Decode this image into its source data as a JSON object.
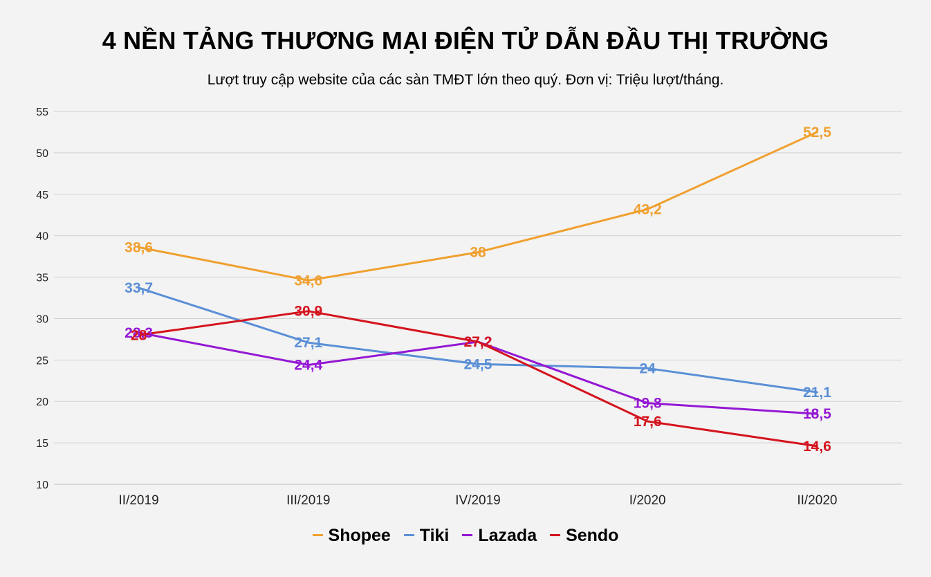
{
  "chart_data": {
    "type": "line",
    "title": "4 NỀN TẢNG THƯƠNG MẠI ĐIỆN TỬ DẪN ĐẦU THỊ TRƯỜNG",
    "subtitle": "Lượt truy cập website của các sàn TMĐT lớn theo quý. Đơn vị: Triệu lượt/tháng.",
    "xlabel": "",
    "ylabel": "",
    "categories": [
      "II/2019",
      "III/2019",
      "IV/2019",
      "I/2020",
      "II/2020"
    ],
    "ylim": [
      10,
      55
    ],
    "yticks": [
      "10",
      "15",
      "20",
      "25",
      "30",
      "35",
      "40",
      "45",
      "50",
      "55"
    ],
    "grid": true,
    "legend_position": "bottom",
    "series": [
      {
        "name": "Shopee",
        "color": "#f0a030",
        "values": [
          38.6,
          34.6,
          38,
          43.2,
          52.5
        ],
        "labels": [
          "38,6",
          "34,6",
          "38",
          "43,2",
          "52,5"
        ]
      },
      {
        "name": "Tiki",
        "color": "#5a8fd6",
        "values": [
          33.7,
          27.1,
          24.5,
          24,
          21.1
        ],
        "labels": [
          "33,7",
          "27,1",
          "24,5",
          "24",
          "21,1"
        ]
      },
      {
        "name": "Lazada",
        "color": "#9418d4",
        "values": [
          28.3,
          24.4,
          27.2,
          19.8,
          18.5
        ],
        "labels": [
          "28,3",
          "24,4",
          "27,2",
          "19,8",
          "18,5"
        ]
      },
      {
        "name": "Sendo",
        "color": "#d4141e",
        "values": [
          28,
          30.9,
          27.2,
          17.6,
          14.6
        ],
        "labels": [
          "28",
          "30,9",
          "27,2",
          "17,6",
          "14,6"
        ]
      }
    ]
  }
}
